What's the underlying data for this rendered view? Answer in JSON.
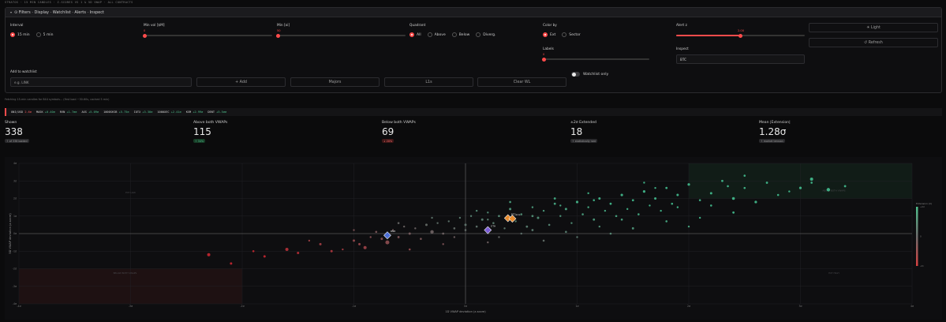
{
  "header": {
    "breadcrumb": "STRATOS · 15 MIN CANDLES · Z-SCORES VS 1 & 5D VWAP · ALL CONTRACTS"
  },
  "filters": {
    "title": "⊙ Filters · Display · Watchlist · Alerts · Inspect",
    "interval": {
      "label": "Interval",
      "options": [
        "15 min",
        "5 min"
      ],
      "selected": "15 min"
    },
    "min_vol": {
      "label": "Min vol [$M]",
      "value": "0",
      "fraction": 0.0
    },
    "min_oi": {
      "label": "Min [oi]",
      "value": "50",
      "fraction": 0.0
    },
    "quadrant": {
      "label": "Quadrant",
      "options": [
        "All",
        "Above",
        "Below",
        "Diverg."
      ],
      "selected": "All"
    },
    "color_by": {
      "label": "Color by",
      "options": [
        "Ext",
        "Sector"
      ],
      "selected": "Ext"
    },
    "labels": {
      "label": "Labels",
      "value": "0",
      "fraction": 0.0
    },
    "alert_z": {
      "label": "Alert z",
      "value": "2.00",
      "fraction": 0.5
    },
    "inspect": {
      "label": "Inspect",
      "value": "BTC"
    },
    "theme_button": "☀ Light",
    "refresh_button": "↺ Refresh",
    "watchlist": {
      "label": "Add to watchlist",
      "placeholder": "e.g. LINK",
      "add_button": "+ Add",
      "majors_button": "Majors",
      "l1s_button": "L1s",
      "clear_button": "Clear WL",
      "toggle_label": "Watchlist only"
    }
  },
  "status_line": "Fetching 15-min candles for 844 symbols... (first load ~30-60s, cached 5 min)",
  "ticker": [
    {
      "sym": "UNI/USD",
      "chg": "2.6σ",
      "dir": "neg"
    },
    {
      "sym": "MASK",
      "chg": "+0.40σ",
      "dir": "pos"
    },
    {
      "sym": "RVN",
      "chg": "+1.7σσ",
      "dir": "pos"
    },
    {
      "sym": "AXS",
      "chg": "+5.09σ",
      "dir": "pos"
    },
    {
      "sym": "1000SHIB",
      "chg": "+5.75σ",
      "dir": "pos"
    },
    {
      "sym": "IOTX",
      "chg": "+3.30σ",
      "dir": "pos"
    },
    {
      "sym": "1000XEC",
      "chg": "+2.41σ",
      "dir": "pos"
    },
    {
      "sym": "KSM",
      "chg": "+2.99σ",
      "dir": "pos"
    },
    {
      "sym": "DENT",
      "chg": "+5.5σσ",
      "dir": "pos"
    }
  ],
  "kpis": [
    {
      "label": "Shown",
      "value": "338",
      "badge": "↑ of 338 loaded",
      "tone": "neutral"
    },
    {
      "label": "Above both VWAPs",
      "value": "115",
      "badge": "↑ 34%",
      "tone": "green"
    },
    {
      "label": "Below both VWAPs",
      "value": "69",
      "badge": "↓ 20%",
      "tone": "red"
    },
    {
      "label": "±2σ Extended",
      "value": "18",
      "badge": "↑ statistically rare",
      "tone": "neutral"
    },
    {
      "label": "Mean |Extension|",
      "value": "1.28σ",
      "badge": "↑ market tension",
      "tone": "neutral"
    }
  ],
  "chart_data": {
    "type": "scatter",
    "xlabel": "1D VWAP deviation (z-score)",
    "ylabel": "5D VWAP deviation (z-score)",
    "xlim": [
      -4,
      4
    ],
    "ylim": [
      -4,
      4
    ],
    "x_ticks": [
      "-4σ",
      "-3σ",
      "-2σ",
      "-1σ",
      "0σ",
      "1σ",
      "2σ",
      "3σ",
      "4σ"
    ],
    "y_ticks": [
      "4σ",
      "3σ",
      "2σ",
      "1σ",
      "0σ",
      "-1σ",
      "-2σ",
      "-3σ",
      "-4σ"
    ],
    "quadrant_labels": [
      "BELOW BOTH VWAPS",
      "ABOVE BOTH VWAPS",
      "EXT LOW",
      "EXT HIGH"
    ],
    "colorbar_title": "Extension (σ)",
    "colorbar_ticks": [
      "+2σ",
      "0",
      "-2σ"
    ],
    "highlights": [
      {
        "name": "BTC",
        "x": 0.38,
        "y": 0.88,
        "color": "#e98a2c"
      },
      {
        "name": "ETH",
        "x": 0.2,
        "y": 0.2,
        "color": "#7a5cd6"
      },
      {
        "name": "SOL",
        "x": 0.42,
        "y": 0.85,
        "color": "#e98a2c"
      },
      {
        "name": "BNB",
        "x": -0.7,
        "y": -0.1,
        "color": "#4d6fd6"
      }
    ],
    "points": [
      [
        -2.3,
        -1.2,
        2
      ],
      [
        -2.1,
        -1.7,
        1.5
      ],
      [
        -1.8,
        -1.3,
        1.5
      ],
      [
        -1.6,
        -0.9,
        2
      ],
      [
        -1.5,
        -1.1,
        1.5
      ],
      [
        -1.3,
        -0.6,
        1.5
      ],
      [
        -1.2,
        -1.0,
        1.5
      ],
      [
        -1.1,
        -0.9,
        1.2
      ],
      [
        -1.0,
        -0.4,
        1.5
      ],
      [
        -0.95,
        -0.6,
        1.5
      ],
      [
        -0.9,
        -0.8,
        2
      ],
      [
        -0.85,
        -0.2,
        1.2
      ],
      [
        -0.8,
        0.1,
        1.3
      ],
      [
        -0.75,
        -0.3,
        1.5
      ],
      [
        -0.7,
        -0.5,
        2.5
      ],
      [
        -0.65,
        0.2,
        1.2
      ],
      [
        -0.6,
        -0.2,
        1.4
      ],
      [
        -0.55,
        0.4,
        1.2
      ],
      [
        -0.5,
        0.0,
        1.5
      ],
      [
        -0.45,
        0.3,
        1.2
      ],
      [
        -0.4,
        -0.3,
        1.3
      ],
      [
        -0.35,
        0.5,
        1.5
      ],
      [
        -0.3,
        0.1,
        2.2
      ],
      [
        -0.25,
        0.6,
        1.2
      ],
      [
        -0.2,
        0.0,
        1.4
      ],
      [
        -0.15,
        0.7,
        1.2
      ],
      [
        -0.1,
        0.3,
        1.3
      ],
      [
        -0.05,
        0.9,
        1.2
      ],
      [
        0.0,
        0.5,
        1.5
      ],
      [
        0.05,
        1.0,
        1.2
      ],
      [
        0.1,
        0.4,
        1.3
      ],
      [
        0.15,
        0.8,
        1.5
      ],
      [
        0.2,
        1.2,
        1.2
      ],
      [
        0.25,
        0.6,
        1.3
      ],
      [
        0.3,
        1.0,
        1.4
      ],
      [
        0.35,
        0.3,
        1.2
      ],
      [
        0.4,
        1.4,
        1.5
      ],
      [
        0.45,
        0.7,
        1.2
      ],
      [
        0.5,
        1.1,
        1.3
      ],
      [
        0.55,
        0.4,
        1.4
      ],
      [
        0.6,
        1.5,
        1.2
      ],
      [
        0.65,
        0.9,
        1.5
      ],
      [
        0.7,
        1.3,
        1.2
      ],
      [
        0.75,
        0.5,
        1.3
      ],
      [
        0.8,
        1.7,
        1.4
      ],
      [
        0.85,
        1.0,
        1.2
      ],
      [
        0.9,
        1.4,
        1.5
      ],
      [
        0.95,
        0.6,
        1.2
      ],
      [
        1.0,
        1.8,
        1.6
      ],
      [
        1.05,
        1.1,
        1.3
      ],
      [
        1.1,
        1.5,
        1.2
      ],
      [
        1.15,
        0.8,
        1.4
      ],
      [
        1.2,
        2.0,
        1.5
      ],
      [
        1.25,
        1.3,
        1.2
      ],
      [
        1.3,
        1.7,
        1.4
      ],
      [
        1.35,
        1.0,
        1.3
      ],
      [
        1.4,
        2.2,
        1.6
      ],
      [
        1.45,
        1.4,
        1.2
      ],
      [
        1.5,
        1.9,
        1.4
      ],
      [
        1.55,
        1.1,
        1.3
      ],
      [
        1.6,
        2.4,
        1.6
      ],
      [
        1.65,
        1.6,
        1.2
      ],
      [
        1.7,
        2.0,
        1.5
      ],
      [
        1.75,
        1.3,
        1.2
      ],
      [
        1.8,
        2.6,
        1.4
      ],
      [
        1.85,
        1.7,
        1.3
      ],
      [
        1.9,
        2.2,
        1.5
      ],
      [
        2.0,
        2.8,
        1.6
      ],
      [
        2.1,
        1.9,
        1.3
      ],
      [
        2.2,
        2.3,
        1.5
      ],
      [
        2.3,
        3.0,
        1.4
      ],
      [
        2.4,
        2.0,
        1.8
      ],
      [
        2.5,
        2.6,
        1.3
      ],
      [
        2.6,
        1.8,
        1.6
      ],
      [
        2.7,
        2.9,
        1.4
      ],
      [
        2.8,
        2.2,
        1.3
      ],
      [
        3.0,
        2.6,
        1.6
      ],
      [
        3.1,
        2.9,
        1.3
      ],
      [
        3.25,
        2.5,
        2.2
      ],
      [
        3.4,
        2.7,
        1.4
      ],
      [
        0.3,
        -0.2,
        1.2
      ],
      [
        0.6,
        0.2,
        1.4
      ],
      [
        0.9,
        0.1,
        1.3
      ],
      [
        1.2,
        0.4,
        1.2
      ],
      [
        1.5,
        0.3,
        1.4
      ],
      [
        1.8,
        0.7,
        1.3
      ],
      [
        2.1,
        0.9,
        1.2
      ],
      [
        2.4,
        1.2,
        1.4
      ],
      [
        1.0,
        -0.2,
        1.2
      ],
      [
        0.7,
        -0.4,
        1.3
      ],
      [
        -0.2,
        -0.6,
        1.2
      ],
      [
        -0.5,
        -0.9,
        1.3
      ],
      [
        0.2,
        -0.5,
        1.2
      ],
      [
        1.3,
        0.0,
        1.3
      ],
      [
        1.9,
        1.5,
        1.2
      ],
      [
        2.2,
        1.6,
        1.3
      ],
      [
        1.1,
        2.3,
        1.2
      ],
      [
        0.8,
        2.0,
        1.4
      ],
      [
        1.6,
        2.9,
        1.2
      ],
      [
        2.5,
        3.3,
        1.3
      ],
      [
        3.1,
        3.1,
        2
      ],
      [
        2.9,
        2.4,
        1.2
      ],
      [
        2.0,
        0.4,
        1.2
      ],
      [
        1.4,
        0.8,
        1.3
      ],
      [
        0.5,
        0.0,
        1.2
      ],
      [
        -0.3,
        0.9,
        1.2
      ],
      [
        -0.6,
        0.6,
        1.3
      ],
      [
        -1.0,
        0.2,
        1.2
      ],
      [
        -1.4,
        -0.4,
        1.2
      ],
      [
        -1.9,
        -1.0,
        1.3
      ],
      [
        0.1,
        1.3,
        1.2
      ],
      [
        0.4,
        1.8,
        1.3
      ],
      [
        0.2,
        0.8,
        1.2
      ],
      [
        0.0,
        0.2,
        1.3
      ],
      [
        -0.1,
        -0.2,
        1.2
      ],
      [
        0.6,
        1.0,
        1.4
      ],
      [
        0.85,
        1.6,
        1.2
      ],
      [
        1.15,
        1.9,
        1.3
      ],
      [
        1.7,
        2.6,
        1.2
      ],
      [
        2.35,
        2.7,
        1.3
      ]
    ]
  }
}
